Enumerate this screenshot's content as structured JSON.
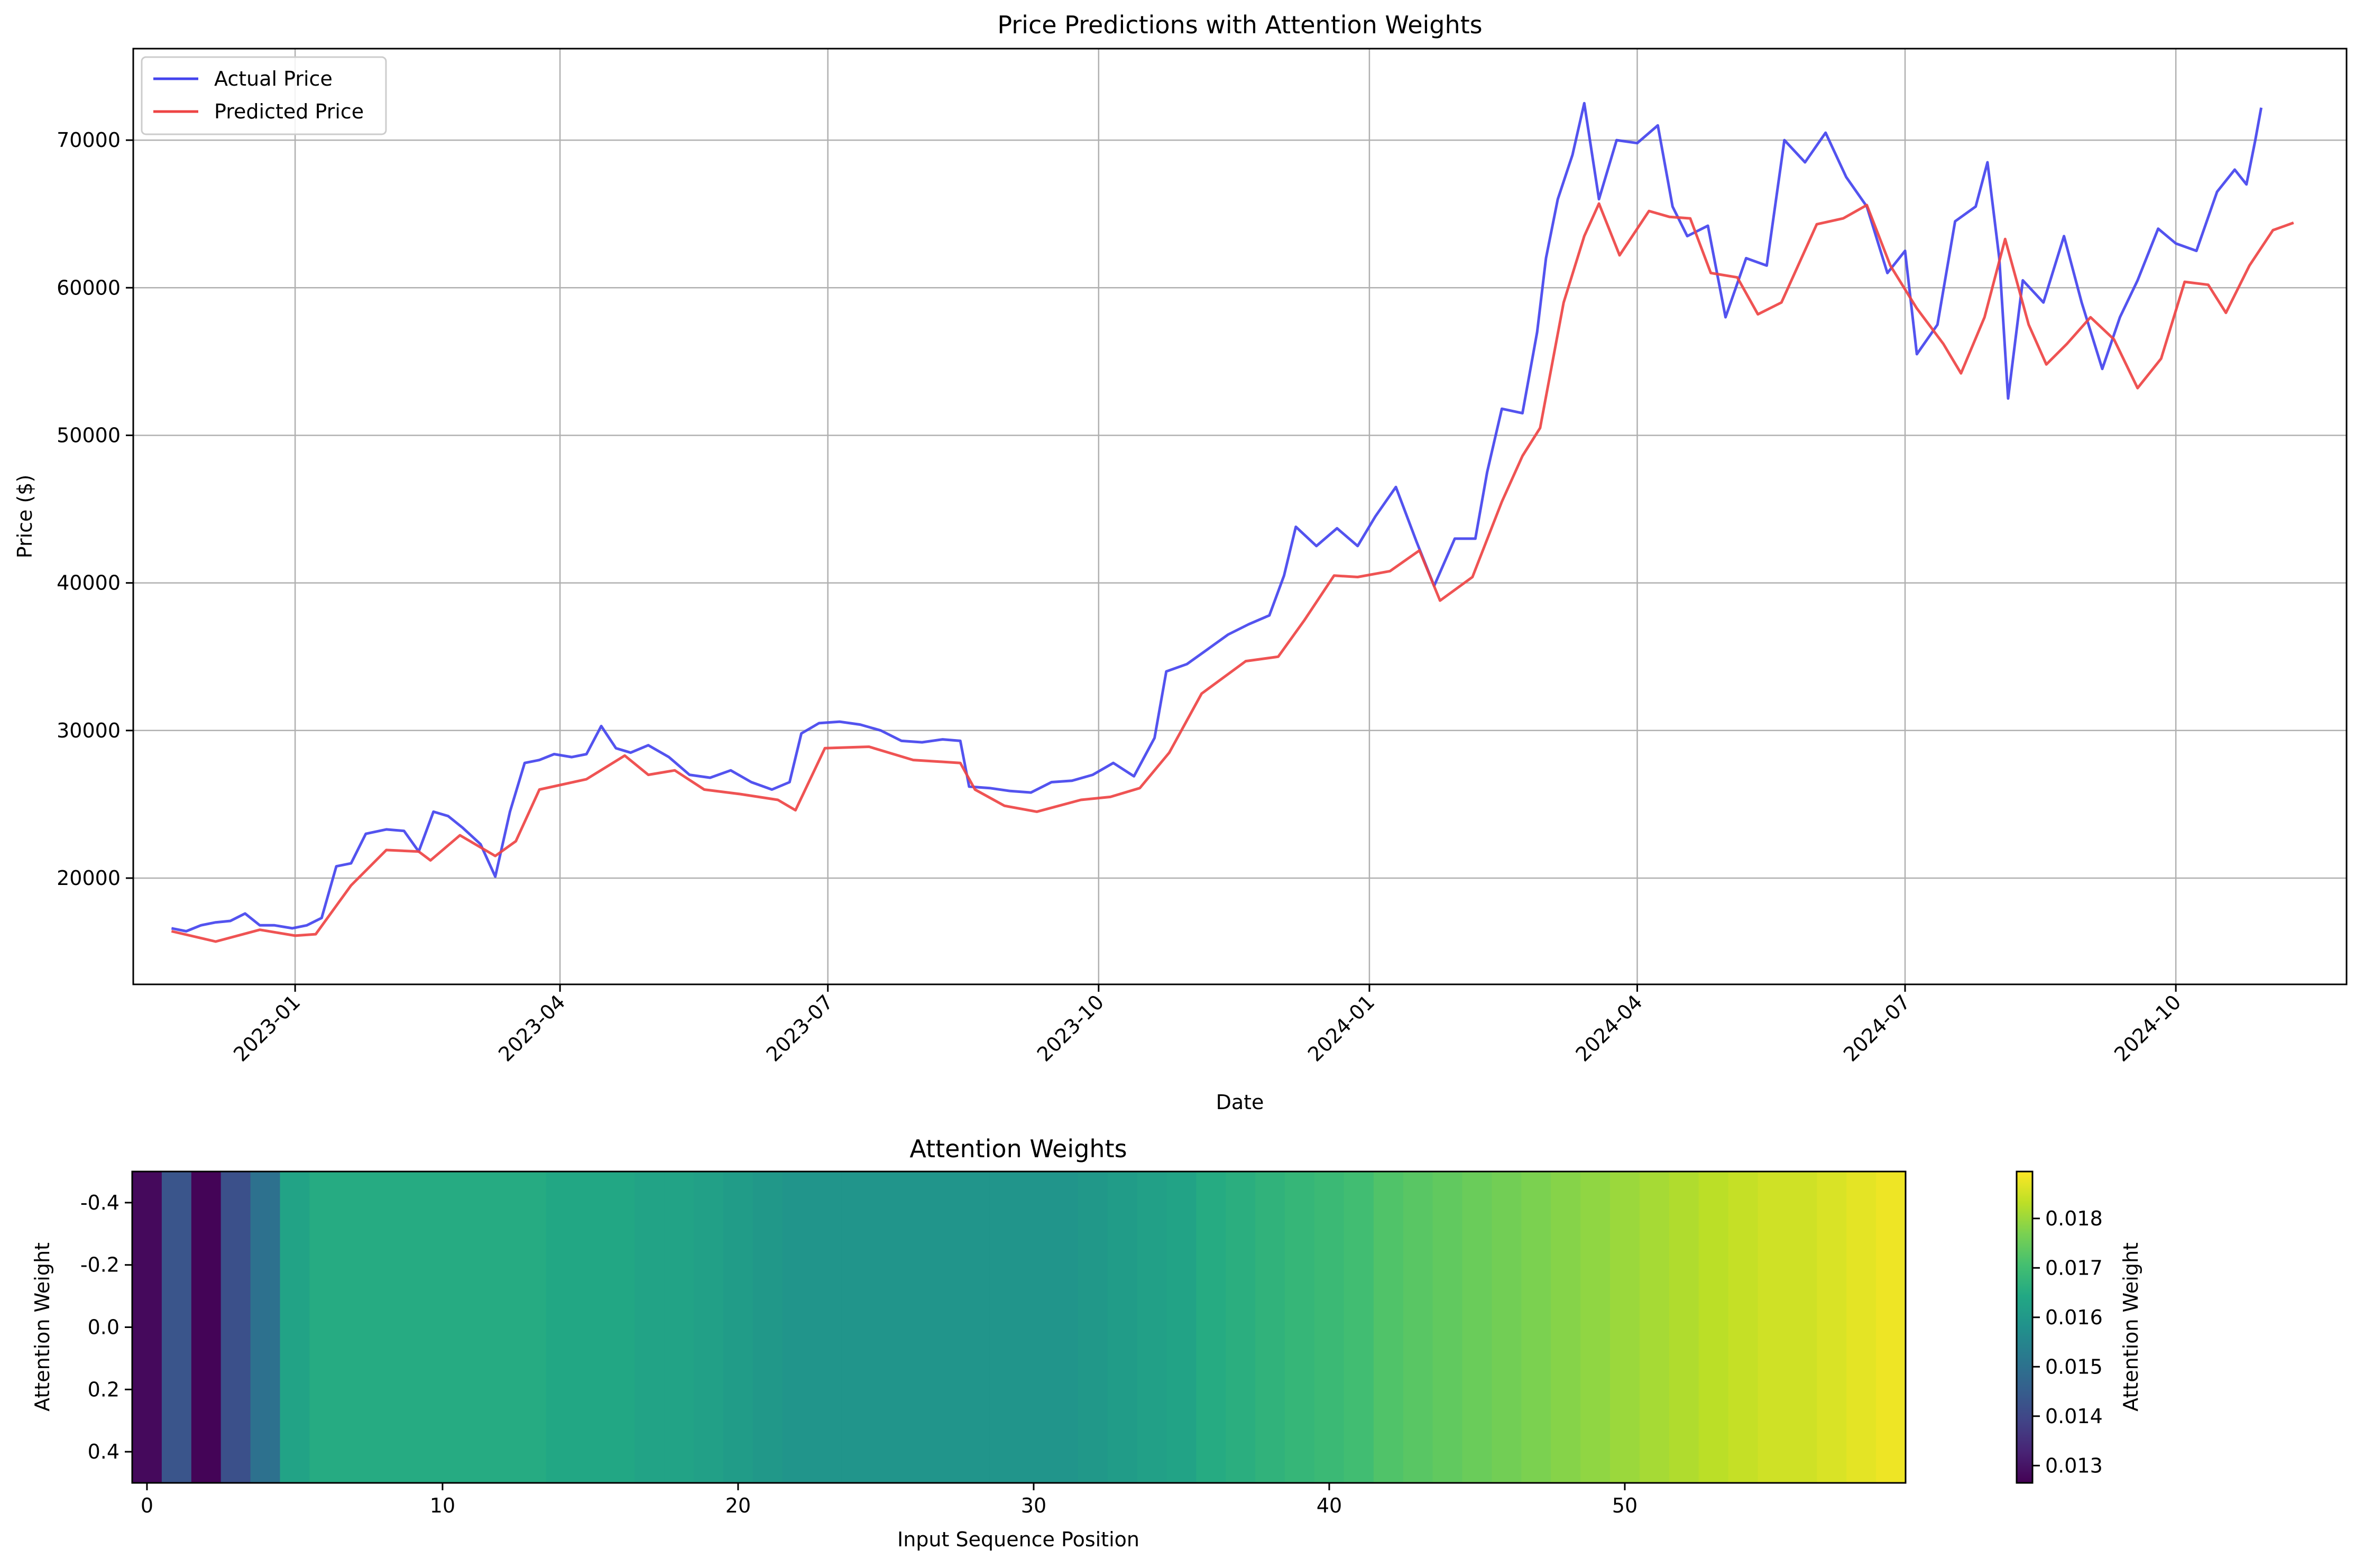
{
  "chart_data": [
    {
      "type": "line",
      "title": "Price Predictions with Attention Weights",
      "xlabel": "Date",
      "ylabel": "Price ($)",
      "xlim": [
        "2022-11-07",
        "2024-11-28"
      ],
      "ylim": [
        12800,
        76200
      ],
      "x_ticks": [
        "2023-01",
        "2023-04",
        "2023-07",
        "2023-10",
        "2024-01",
        "2024-04",
        "2024-07",
        "2024-10"
      ],
      "y_ticks": [
        20000,
        30000,
        40000,
        50000,
        60000,
        70000
      ],
      "y_tick_labels": [
        "20000",
        "30000",
        "40000",
        "50000",
        "60000",
        "70000"
      ],
      "grid": true,
      "legend_position": "top-left",
      "series": [
        {
          "name": "Actual Price",
          "color": "#4444ee",
          "points": [
            [
              "2022-11-20",
              16600
            ],
            [
              "2022-11-25",
              16400
            ],
            [
              "2022-11-30",
              16800
            ],
            [
              "2022-12-05",
              17000
            ],
            [
              "2022-12-10",
              17100
            ],
            [
              "2022-12-15",
              17600
            ],
            [
              "2022-12-20",
              16800
            ],
            [
              "2022-12-25",
              16800
            ],
            [
              "2022-12-31",
              16600
            ],
            [
              "2023-01-05",
              16800
            ],
            [
              "2023-01-10",
              17300
            ],
            [
              "2023-01-15",
              20800
            ],
            [
              "2023-01-20",
              21000
            ],
            [
              "2023-01-25",
              23000
            ],
            [
              "2023-02-01",
              23300
            ],
            [
              "2023-02-07",
              23200
            ],
            [
              "2023-02-12",
              21800
            ],
            [
              "2023-02-17",
              24500
            ],
            [
              "2023-02-22",
              24200
            ],
            [
              "2023-02-27",
              23400
            ],
            [
              "2023-03-05",
              22300
            ],
            [
              "2023-03-10",
              20100
            ],
            [
              "2023-03-15",
              24500
            ],
            [
              "2023-03-20",
              27800
            ],
            [
              "2023-03-25",
              28000
            ],
            [
              "2023-03-30",
              28400
            ],
            [
              "2023-04-05",
              28200
            ],
            [
              "2023-04-10",
              28400
            ],
            [
              "2023-04-15",
              30300
            ],
            [
              "2023-04-20",
              28800
            ],
            [
              "2023-04-25",
              28500
            ],
            [
              "2023-05-01",
              29000
            ],
            [
              "2023-05-08",
              28200
            ],
            [
              "2023-05-15",
              27000
            ],
            [
              "2023-05-22",
              26800
            ],
            [
              "2023-05-29",
              27300
            ],
            [
              "2023-06-05",
              26500
            ],
            [
              "2023-06-12",
              26000
            ],
            [
              "2023-06-18",
              26500
            ],
            [
              "2023-06-22",
              29800
            ],
            [
              "2023-06-28",
              30500
            ],
            [
              "2023-07-05",
              30600
            ],
            [
              "2023-07-12",
              30400
            ],
            [
              "2023-07-19",
              30000
            ],
            [
              "2023-07-26",
              29300
            ],
            [
              "2023-08-02",
              29200
            ],
            [
              "2023-08-09",
              29400
            ],
            [
              "2023-08-15",
              29300
            ],
            [
              "2023-08-18",
              26200
            ],
            [
              "2023-08-25",
              26100
            ],
            [
              "2023-09-01",
              25900
            ],
            [
              "2023-09-08",
              25800
            ],
            [
              "2023-09-15",
              26500
            ],
            [
              "2023-09-22",
              26600
            ],
            [
              "2023-09-29",
              27000
            ],
            [
              "2023-10-06",
              27800
            ],
            [
              "2023-10-13",
              26900
            ],
            [
              "2023-10-20",
              29500
            ],
            [
              "2023-10-24",
              34000
            ],
            [
              "2023-10-31",
              34500
            ],
            [
              "2023-11-07",
              35500
            ],
            [
              "2023-11-14",
              36500
            ],
            [
              "2023-11-21",
              37200
            ],
            [
              "2023-11-28",
              37800
            ],
            [
              "2023-12-03",
              40500
            ],
            [
              "2023-12-07",
              43800
            ],
            [
              "2023-12-14",
              42500
            ],
            [
              "2023-12-21",
              43700
            ],
            [
              "2023-12-28",
              42500
            ],
            [
              "2024-01-03",
              44500
            ],
            [
              "2024-01-10",
              46500
            ],
            [
              "2024-01-17",
              42800
            ],
            [
              "2024-01-23",
              39800
            ],
            [
              "2024-01-30",
              43000
            ],
            [
              "2024-02-06",
              43000
            ],
            [
              "2024-02-10",
              47500
            ],
            [
              "2024-02-15",
              51800
            ],
            [
              "2024-02-22",
              51500
            ],
            [
              "2024-02-27",
              57000
            ],
            [
              "2024-03-01",
              62000
            ],
            [
              "2024-03-05",
              66000
            ],
            [
              "2024-03-10",
              69000
            ],
            [
              "2024-03-14",
              72500
            ],
            [
              "2024-03-19",
              66000
            ],
            [
              "2024-03-25",
              70000
            ],
            [
              "2024-04-01",
              69800
            ],
            [
              "2024-04-08",
              71000
            ],
            [
              "2024-04-13",
              65500
            ],
            [
              "2024-04-18",
              63500
            ],
            [
              "2024-04-25",
              64200
            ],
            [
              "2024-05-01",
              58000
            ],
            [
              "2024-05-08",
              62000
            ],
            [
              "2024-05-15",
              61500
            ],
            [
              "2024-05-21",
              70000
            ],
            [
              "2024-05-28",
              68500
            ],
            [
              "2024-06-04",
              70500
            ],
            [
              "2024-06-11",
              67500
            ],
            [
              "2024-06-18",
              65500
            ],
            [
              "2024-06-25",
              61000
            ],
            [
              "2024-07-01",
              62500
            ],
            [
              "2024-07-05",
              55500
            ],
            [
              "2024-07-12",
              57500
            ],
            [
              "2024-07-18",
              64500
            ],
            [
              "2024-07-25",
              65500
            ],
            [
              "2024-07-29",
              68500
            ],
            [
              "2024-08-02",
              62000
            ],
            [
              "2024-08-05",
              52500
            ],
            [
              "2024-08-10",
              60500
            ],
            [
              "2024-08-17",
              59000
            ],
            [
              "2024-08-24",
              63500
            ],
            [
              "2024-08-30",
              59000
            ],
            [
              "2024-09-06",
              54500
            ],
            [
              "2024-09-12",
              58000
            ],
            [
              "2024-09-18",
              60500
            ],
            [
              "2024-09-25",
              64000
            ],
            [
              "2024-10-01",
              63000
            ],
            [
              "2024-10-08",
              62500
            ],
            [
              "2024-10-15",
              66500
            ],
            [
              "2024-10-21",
              68000
            ],
            [
              "2024-10-25",
              67000
            ],
            [
              "2024-10-28",
              70000
            ],
            [
              "2024-10-30",
              72200
            ]
          ]
        },
        {
          "name": "Predicted Price",
          "color": "#ee4444",
          "points": [
            [
              "2022-11-20",
              16400
            ],
            [
              "2022-12-05",
              15700
            ],
            [
              "2022-12-20",
              16500
            ],
            [
              "2023-01-01",
              16100
            ],
            [
              "2023-01-08",
              16200
            ],
            [
              "2023-01-20",
              19500
            ],
            [
              "2023-02-01",
              21900
            ],
            [
              "2023-02-12",
              21800
            ],
            [
              "2023-02-16",
              21200
            ],
            [
              "2023-02-26",
              22900
            ],
            [
              "2023-03-10",
              21500
            ],
            [
              "2023-03-17",
              22500
            ],
            [
              "2023-03-25",
              26000
            ],
            [
              "2023-04-10",
              26700
            ],
            [
              "2023-04-23",
              28300
            ],
            [
              "2023-05-01",
              27000
            ],
            [
              "2023-05-10",
              27300
            ],
            [
              "2023-05-20",
              26000
            ],
            [
              "2023-06-01",
              25700
            ],
            [
              "2023-06-14",
              25300
            ],
            [
              "2023-06-20",
              24600
            ],
            [
              "2023-06-30",
              28800
            ],
            [
              "2023-07-15",
              28900
            ],
            [
              "2023-07-30",
              28000
            ],
            [
              "2023-08-15",
              27800
            ],
            [
              "2023-08-20",
              26000
            ],
            [
              "2023-08-30",
              24900
            ],
            [
              "2023-09-10",
              24500
            ],
            [
              "2023-09-25",
              25300
            ],
            [
              "2023-10-05",
              25500
            ],
            [
              "2023-10-15",
              26100
            ],
            [
              "2023-10-25",
              28500
            ],
            [
              "2023-11-05",
              32500
            ],
            [
              "2023-11-20",
              34700
            ],
            [
              "2023-12-01",
              35000
            ],
            [
              "2023-12-10",
              37500
            ],
            [
              "2023-12-20",
              40500
            ],
            [
              "2023-12-28",
              40400
            ],
            [
              "2024-01-08",
              40800
            ],
            [
              "2024-01-18",
              42200
            ],
            [
              "2024-01-25",
              38800
            ],
            [
              "2024-02-05",
              40400
            ],
            [
              "2024-02-15",
              45500
            ],
            [
              "2024-02-22",
              48600
            ],
            [
              "2024-02-28",
              50500
            ],
            [
              "2024-03-07",
              59000
            ],
            [
              "2024-03-14",
              63500
            ],
            [
              "2024-03-19",
              65700
            ],
            [
              "2024-03-26",
              62200
            ],
            [
              "2024-04-05",
              65200
            ],
            [
              "2024-04-12",
              64800
            ],
            [
              "2024-04-19",
              64700
            ],
            [
              "2024-04-26",
              61000
            ],
            [
              "2024-05-05",
              60700
            ],
            [
              "2024-05-12",
              58200
            ],
            [
              "2024-05-20",
              59000
            ],
            [
              "2024-06-01",
              64300
            ],
            [
              "2024-06-10",
              64700
            ],
            [
              "2024-06-18",
              65600
            ],
            [
              "2024-06-26",
              61500
            ],
            [
              "2024-07-05",
              58600
            ],
            [
              "2024-07-14",
              56200
            ],
            [
              "2024-07-20",
              54200
            ],
            [
              "2024-07-28",
              58000
            ],
            [
              "2024-08-04",
              63300
            ],
            [
              "2024-08-12",
              57500
            ],
            [
              "2024-08-18",
              54800
            ],
            [
              "2024-08-25",
              56200
            ],
            [
              "2024-09-02",
              58000
            ],
            [
              "2024-09-10",
              56500
            ],
            [
              "2024-09-18",
              53200
            ],
            [
              "2024-09-26",
              55200
            ],
            [
              "2024-10-04",
              60400
            ],
            [
              "2024-10-12",
              60200
            ],
            [
              "2024-10-18",
              58300
            ],
            [
              "2024-10-26",
              61500
            ],
            [
              "2024-11-03",
              63900
            ],
            [
              "2024-11-10",
              64400
            ]
          ]
        }
      ]
    },
    {
      "type": "heatmap",
      "title": "Attention Weights",
      "xlabel": "Input Sequence Position",
      "ylabel": "Attention Weight",
      "x_ticks": [
        0,
        10,
        20,
        30,
        40,
        50
      ],
      "y_ticks": [
        "-0.4",
        "-0.2",
        "0.0",
        "0.2",
        "0.4"
      ],
      "xlim": [
        -0.5,
        59.5
      ],
      "ylim": [
        0.5,
        -0.5
      ],
      "colormap": "viridis",
      "colorbar": {
        "label": "Attention Weight",
        "vmin": 0.01265,
        "vmax": 0.01895,
        "ticks": [
          "0.013",
          "0.014",
          "0.015",
          "0.016",
          "0.017",
          "0.018"
        ]
      },
      "values": [
        0.0128,
        0.0143,
        0.0127,
        0.0142,
        0.015,
        0.0163,
        0.0165,
        0.0165,
        0.0165,
        0.0165,
        0.0165,
        0.0165,
        0.0165,
        0.0165,
        0.0164,
        0.0164,
        0.0164,
        0.0163,
        0.0163,
        0.0162,
        0.0161,
        0.016,
        0.0159,
        0.0159,
        0.0159,
        0.0159,
        0.0159,
        0.0159,
        0.0159,
        0.0159,
        0.0159,
        0.0159,
        0.016,
        0.0161,
        0.0162,
        0.0163,
        0.0165,
        0.0166,
        0.0167,
        0.0168,
        0.0169,
        0.017,
        0.0172,
        0.0173,
        0.0174,
        0.0175,
        0.0176,
        0.0177,
        0.0178,
        0.0179,
        0.018,
        0.0181,
        0.0182,
        0.0183,
        0.0184,
        0.0185,
        0.0185,
        0.0186,
        0.0187,
        0.0188
      ]
    }
  ]
}
